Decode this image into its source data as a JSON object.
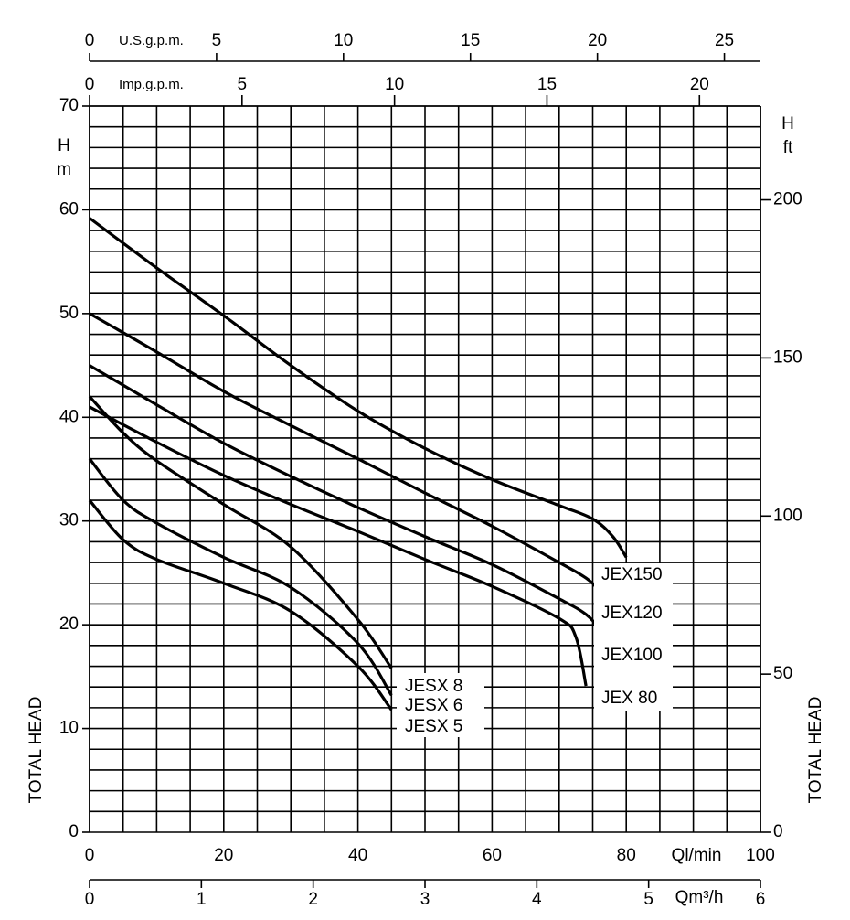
{
  "chart_data": {
    "type": "line",
    "xlabel": "Ql/min",
    "ylabel": "H",
    "ylabel_unit": "m",
    "y2label": "H",
    "y2label_unit": "ft",
    "side_label": "TOTAL HEAD",
    "xlim": [
      0,
      100
    ],
    "xticks": [
      0,
      20,
      40,
      60,
      80,
      100
    ],
    "ylim": [
      0,
      70
    ],
    "yticks": [
      0,
      10,
      20,
      30,
      40,
      50,
      60,
      70
    ],
    "y2lim": [
      0,
      229.66
    ],
    "y2ticks": [
      0,
      50,
      100,
      150,
      200
    ],
    "xgrid": [
      0,
      5,
      10,
      15,
      20,
      25,
      30,
      35,
      40,
      45,
      50,
      55,
      60,
      65,
      70,
      75,
      80,
      85,
      90,
      95,
      100
    ],
    "ygrid": [
      0,
      2,
      4,
      6,
      8,
      10,
      12,
      14,
      16,
      18,
      20,
      22,
      24,
      26,
      28,
      30,
      32,
      34,
      36,
      38,
      40,
      42,
      44,
      46,
      48,
      50,
      52,
      54,
      56,
      58,
      60,
      62,
      64,
      66,
      68,
      70
    ],
    "top_axes": [
      {
        "label": "U.S.g.p.m.",
        "lim": [
          0,
          26.42
        ],
        "ticks": [
          0,
          5,
          10,
          15,
          20,
          25
        ]
      },
      {
        "label": "Imp.g.p.m.",
        "lim": [
          0,
          22
        ],
        "ticks": [
          0,
          5,
          10,
          15,
          20
        ]
      }
    ],
    "bottom_axis": {
      "label": "Qm³/h",
      "lim": [
        0,
        6
      ],
      "ticks": [
        0,
        1,
        2,
        3,
        4,
        5,
        6
      ]
    },
    "series": [
      {
        "name": "JEX150",
        "color": "#000000",
        "x": [
          0,
          10,
          20,
          30,
          40,
          50,
          60,
          70,
          75,
          78,
          80
        ],
        "values": [
          59.2,
          54.4,
          49.8,
          45,
          40.6,
          37,
          34,
          31.5,
          30.2,
          28.5,
          26.5
        ]
      },
      {
        "name": "JEX120",
        "color": "#000000",
        "x": [
          0,
          10,
          20,
          30,
          40,
          50,
          60,
          70,
          74,
          76,
          78
        ],
        "values": [
          50,
          46.3,
          42.5,
          39.2,
          36,
          32.7,
          29.5,
          26,
          24.5,
          23.2,
          20.8
        ]
      },
      {
        "name": "JEX100",
        "color": "#000000",
        "x": [
          0,
          10,
          20,
          30,
          40,
          50,
          60,
          70,
          74,
          76,
          78
        ],
        "values": [
          45,
          41.2,
          37.5,
          34.3,
          31.3,
          28.5,
          25.8,
          22.5,
          21,
          19.5,
          17.2
        ]
      },
      {
        "name": "JEX 80",
        "color": "#000000",
        "x": [
          0,
          10,
          20,
          30,
          40,
          50,
          60,
          70,
          72.5,
          74
        ],
        "values": [
          41,
          37.6,
          34.4,
          31.6,
          29,
          26.3,
          23.7,
          20.6,
          18.8,
          14.1
        ]
      },
      {
        "name": "JESX 8",
        "color": "#000000",
        "x": [
          0,
          5,
          10,
          20,
          30,
          40,
          45
        ],
        "values": [
          42,
          38.5,
          35.8,
          31.6,
          27.5,
          20.5,
          15.8
        ]
      },
      {
        "name": "JESX 6",
        "color": "#000000",
        "x": [
          0,
          5,
          10,
          20,
          30,
          40,
          45
        ],
        "values": [
          36,
          32,
          29.8,
          26.5,
          23.6,
          18.2,
          13.2
        ]
      },
      {
        "name": "JESX 5",
        "color": "#000000",
        "x": [
          0,
          5,
          10,
          20,
          30,
          40,
          45
        ],
        "values": [
          32,
          28.2,
          26.3,
          24,
          21.3,
          16,
          11.8
        ]
      }
    ]
  }
}
